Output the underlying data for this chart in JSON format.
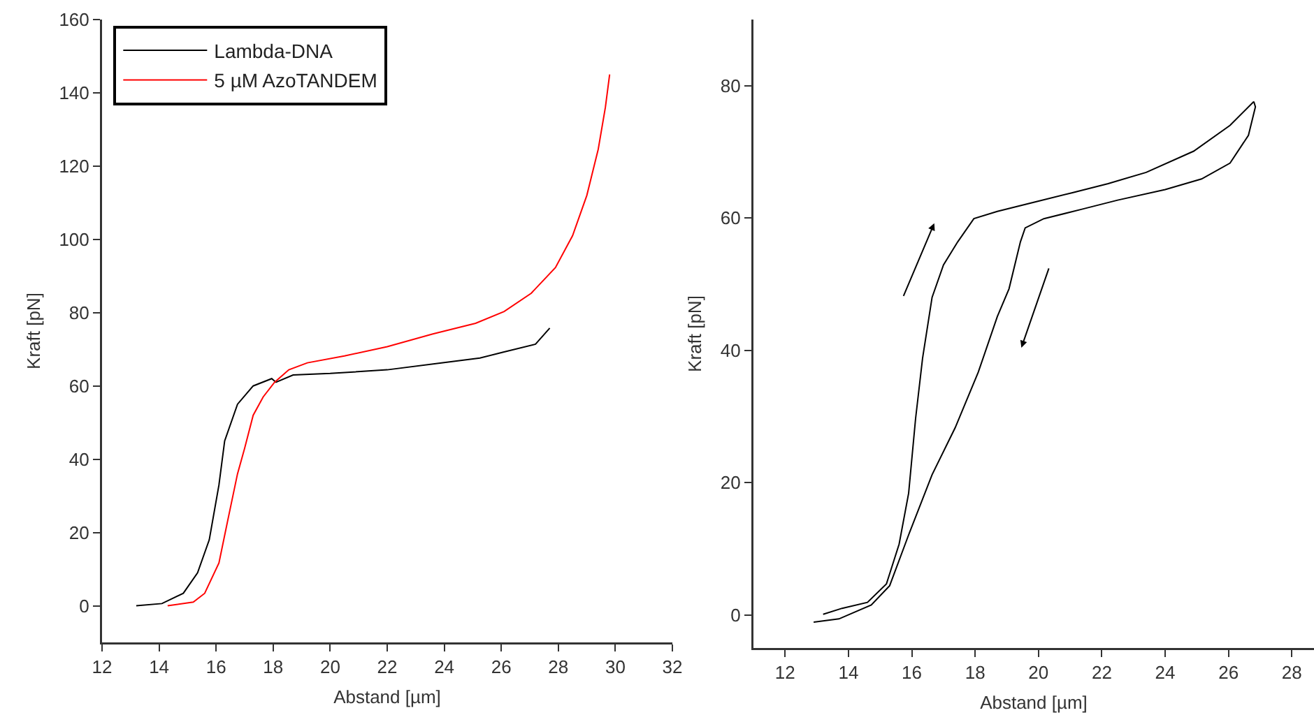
{
  "chart_data": [
    {
      "type": "line",
      "xlabel": "Abstand [µm]",
      "ylabel": "Kraft [pN]",
      "xlim": [
        12,
        32
      ],
      "xticks": [
        12,
        14,
        16,
        18,
        20,
        22,
        24,
        26,
        28,
        30,
        32
      ],
      "ylim": [
        -10,
        160
      ],
      "yticks": [
        0,
        20,
        40,
        60,
        80,
        100,
        120,
        140,
        160
      ],
      "grid": false,
      "legend": "top left",
      "line_style": "solid",
      "marker": "none",
      "series": [
        {
          "name": "Lambda-DNA",
          "color": "#000000",
          "x": [
            13.2,
            14.1,
            14.85,
            15.35,
            15.76,
            16.1,
            16.3,
            16.75,
            17.3,
            17.95,
            18.1,
            18.7,
            20.0,
            22.0,
            23.9,
            25.25,
            26.05,
            27.2,
            27.7
          ],
          "values": [
            0,
            0.6,
            3.4,
            9,
            18,
            33,
            45,
            55,
            60,
            62,
            61,
            63,
            63.4,
            64.4,
            66.3,
            67.6,
            69.2,
            71.4,
            75.8
          ]
        },
        {
          "name": "5 µM AzoTANDEM",
          "color": "#ff0000",
          "x": [
            14.3,
            15.2,
            15.6,
            16.1,
            16.4,
            16.75,
            17.0,
            17.3,
            17.65,
            18.05,
            18.55,
            19.2,
            20.5,
            22.0,
            23.6,
            25.1,
            26.1,
            27.05,
            27.9,
            28.5,
            29.0,
            29.4,
            29.65,
            29.8
          ],
          "values": [
            0,
            1,
            3.4,
            11.7,
            23,
            36,
            43,
            52,
            57,
            61,
            64.4,
            66.3,
            68.2,
            70.7,
            74.2,
            77.1,
            80.3,
            85.3,
            92.3,
            101,
            112,
            124.6,
            136,
            145
          ]
        }
      ]
    },
    {
      "type": "line",
      "xlabel": "Abstand [µm]",
      "ylabel": "Kraft [pN]",
      "xlim": [
        11,
        28.7
      ],
      "xticks": [
        12,
        14,
        16,
        18,
        20,
        22,
        24,
        26,
        28
      ],
      "ylim": [
        -5,
        90
      ],
      "yticks": [
        0,
        20,
        40,
        60,
        80
      ],
      "grid": false,
      "legend": false,
      "line_style": "solid",
      "marker": "none",
      "series": [
        {
          "color": "#000000",
          "x": [
            13.2,
            13.8,
            14.6,
            15.2,
            15.6,
            15.9,
            16.12,
            16.34,
            16.64,
            17.0,
            17.45,
            17.96,
            18.7,
            19.87,
            21.05,
            22.2,
            23.4,
            24.9,
            26.05,
            26.8
          ],
          "values": [
            0.1,
            1,
            1.9,
            4.7,
            10.7,
            18.4,
            29.7,
            38.8,
            48,
            52.9,
            56.4,
            59.9,
            61,
            62.4,
            63.8,
            65.2,
            66.9,
            70.1,
            74,
            77.6
          ]
        },
        {
          "color": "#000000",
          "x": [
            26.8,
            26.85,
            26.63,
            26.05,
            25.15,
            24.0,
            22.5,
            21.35,
            20.17,
            19.58,
            19.43,
            19.07,
            18.7,
            18.1,
            17.37,
            16.64,
            15.9,
            15.3,
            14.72,
            13.7,
            12.9
          ],
          "values": [
            77.6,
            76.8,
            72.5,
            68.3,
            65.9,
            64.3,
            62.7,
            61.3,
            59.9,
            58.5,
            56.4,
            49.3,
            45.1,
            36.7,
            28.3,
            21.2,
            12.1,
            4.4,
            1.5,
            -0.6,
            -1.1
          ]
        }
      ]
    }
  ]
}
